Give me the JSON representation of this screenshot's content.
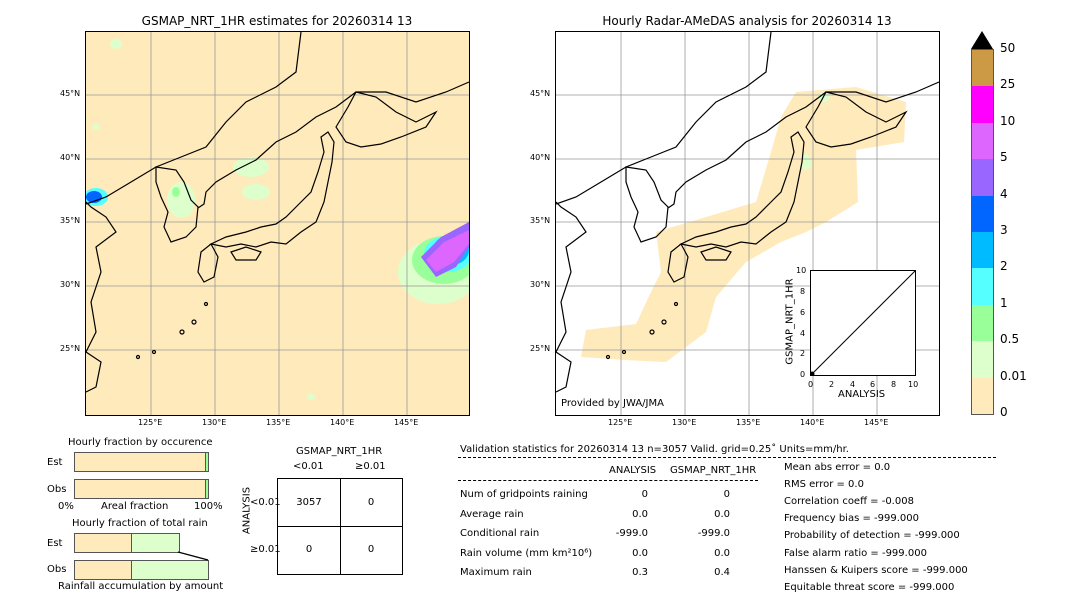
{
  "left_map": {
    "title": "GSMAP_NRT_1HR estimates for 20260314 13",
    "lat_labels": [
      "45°N",
      "40°N",
      "35°N",
      "30°N",
      "25°N"
    ],
    "lon_labels": [
      "125°E",
      "130°E",
      "135°E",
      "140°E",
      "145°E"
    ]
  },
  "right_map": {
    "title": "Hourly Radar-AMeDAS analysis for 20260314 13",
    "lat_labels": [
      "45°N",
      "40°N",
      "35°N",
      "30°N",
      "25°N"
    ],
    "lon_labels": [
      "125°E",
      "130°E",
      "135°E",
      "140°E",
      "145°E"
    ],
    "credit": "Provided by JWA/JMA"
  },
  "colorbar": {
    "labels": [
      "50",
      "25",
      "10",
      "5",
      "4",
      "3",
      "2",
      "1",
      "0.5",
      "0.01",
      "0"
    ],
    "colors": [
      "#cc9944",
      "#ff00ff",
      "#dd66ff",
      "#9966ff",
      "#0066ff",
      "#00bbff",
      "#55ffff",
      "#99ff99",
      "#ddffcc",
      "#ffeabb"
    ],
    "extend_color": "#000000"
  },
  "inset": {
    "xlabel": "ANALYSIS",
    "ylabel": "GSMAP_NRT_1HR",
    "ticks": [
      "0",
      "2",
      "4",
      "6",
      "8",
      "10"
    ]
  },
  "occurrence": {
    "title": "Hourly fraction by occurence",
    "est_label": "Est",
    "obs_label": "Obs",
    "xlabel": "Areal fraction",
    "x_min": "0%",
    "x_max": "100%"
  },
  "total_rain": {
    "title": "Hourly fraction of total rain",
    "est_label": "Est",
    "obs_label": "Obs",
    "xlabel": "Rainfall accumulation by amount"
  },
  "contingency": {
    "col_title": "GSMAP_NRT_1HR",
    "col_headers": [
      "<0.01",
      "≥0.01"
    ],
    "row_title": "ANALYSIS",
    "row_headers": [
      "<0.01",
      "≥0.01"
    ],
    "cells": [
      [
        "3057",
        "0"
      ],
      [
        "0",
        "0"
      ]
    ]
  },
  "validation": {
    "header": "Validation statistics for 20260314 13  n=3057 Valid. grid=0.25˚ Units=mm/hr.",
    "col_headers": [
      "ANALYSIS",
      "GSMAP_NRT_1HR"
    ],
    "rows": [
      {
        "label": "Num of gridpoints raining",
        "a": "0",
        "g": "0"
      },
      {
        "label": "Average rain",
        "a": "0.0",
        "g": "0.0"
      },
      {
        "label": "Conditional rain",
        "a": "-999.0",
        "g": "-999.0"
      },
      {
        "label": "Rain volume (mm km²10⁶)",
        "a": "0.0",
        "g": "0.0"
      },
      {
        "label": "Maximum rain",
        "a": "0.3",
        "g": "0.4"
      }
    ],
    "scores": [
      "Mean abs error =    0.0",
      "RMS error =    0.0",
      "Correlation coeff = -0.008",
      "Frequency bias = -999.000",
      "Probability of detection = -999.000",
      "False alarm ratio = -999.000",
      "Hanssen & Kuipers score = -999.000",
      "Equitable threat score = -999.000"
    ]
  },
  "chart_data": [
    {
      "type": "heatmap",
      "title": "GSMAP_NRT_1HR estimates for 20260314 13",
      "lon_range": [
        120,
        150
      ],
      "lat_range": [
        20,
        50
      ],
      "grid": true
    },
    {
      "type": "heatmap",
      "title": "Hourly Radar-AMeDAS analysis for 20260314 13",
      "lon_range": [
        120,
        150
      ],
      "lat_range": [
        20,
        50
      ],
      "grid": true
    },
    {
      "type": "scatter",
      "xlabel": "ANALYSIS",
      "ylabel": "GSMAP_NRT_1HR",
      "xlim": [
        0,
        10
      ],
      "ylim": [
        0,
        10
      ],
      "points": [
        [
          0.0,
          0.0
        ]
      ]
    },
    {
      "type": "bar",
      "title": "Hourly fraction by occurence",
      "categories": [
        "Est",
        "Obs"
      ],
      "series": [
        {
          "values": [
            0.99,
            0.99
          ]
        },
        {
          "values": [
            0.01,
            0.01
          ]
        }
      ]
    },
    {
      "type": "bar",
      "title": "Hourly fraction of total rain",
      "categories": [
        "Est",
        "Obs"
      ],
      "series": [
        {
          "values": [
            0.43,
            0.43
          ]
        },
        {
          "values": [
            0.35,
            0.57
          ]
        }
      ]
    }
  ]
}
